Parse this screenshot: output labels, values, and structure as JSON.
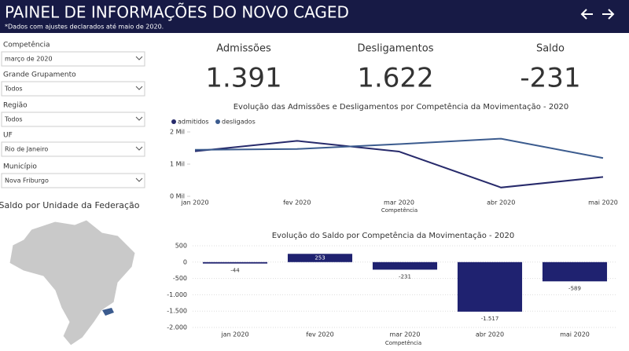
{
  "header": {
    "title": "PAINEL DE INFORMAÇÕES DO NOVO CAGED",
    "subtitle": "*Dados com ajustes declarados até maio de 2020."
  },
  "filters": [
    {
      "label": "Competência",
      "value": "março de 2020"
    },
    {
      "label": "Grande Grupamento",
      "value": "Todos"
    },
    {
      "label": "Região",
      "value": "Todos"
    },
    {
      "label": "UF",
      "value": "Rio de Janeiro"
    },
    {
      "label": "Município",
      "value": "Nova Friburgo"
    }
  ],
  "kpis": [
    {
      "label": "Admissões",
      "value": "1.391"
    },
    {
      "label": "Desligamentos",
      "value": "1.622"
    },
    {
      "label": "Saldo",
      "value": "-231"
    }
  ],
  "map_title": "Saldo por Unidade da Federação",
  "chart_data": [
    {
      "type": "line",
      "title": "Evolução das Admissões e Desligamentos por Competência da Movimentação - 2020",
      "x_label": "Competência",
      "categories": [
        "jan 2020",
        "fev 2020",
        "mar 2020",
        "abr 2020",
        "mai 2020"
      ],
      "series": [
        {
          "name": "admitidos",
          "color": "#272a6b",
          "values": [
            1400,
            1723,
            1391,
            273,
            600
          ]
        },
        {
          "name": "desligados",
          "color": "#3b5b8e",
          "values": [
            1444,
            1470,
            1622,
            1790,
            1189
          ]
        }
      ],
      "ylim": [
        0,
        2000
      ],
      "yticks": [
        {
          "value": 0,
          "label": "0 Mil"
        },
        {
          "value": 1000,
          "label": "1 Mil"
        },
        {
          "value": 2000,
          "label": "2 Mil"
        }
      ]
    },
    {
      "type": "bar",
      "title": "Evolução do Saldo por Competência da Movimentação - 2020",
      "x_label": "Competência",
      "categories": [
        "jan 2020",
        "fev 2020",
        "mar 2020",
        "abr 2020",
        "mai 2020"
      ],
      "values": [
        -44,
        253,
        -231,
        -1517,
        -589
      ],
      "value_labels": [
        "-44",
        "253",
        "-231",
        "-1.517",
        "-589"
      ],
      "color": "#1f2270",
      "ylim": [
        -2000,
        500
      ],
      "yticks": [
        500,
        0,
        -500,
        {
          "value": -1000,
          "label": "-1.000"
        },
        {
          "value": -1500,
          "label": "-1.500"
        },
        {
          "value": -2000,
          "label": "-2.000"
        }
      ],
      "grid": true
    }
  ]
}
